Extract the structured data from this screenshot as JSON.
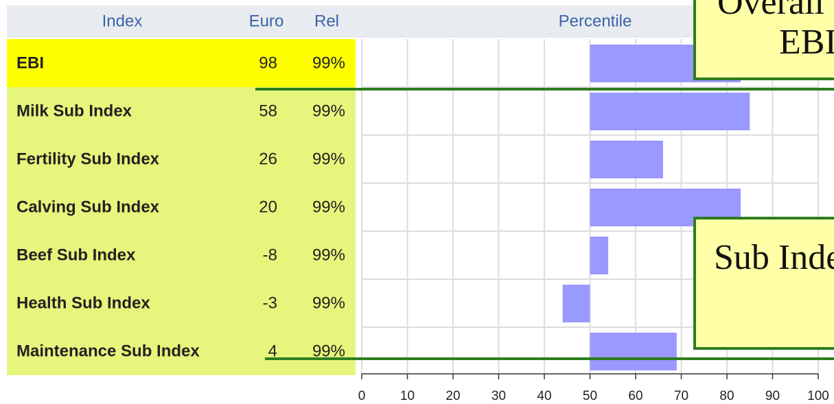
{
  "table": {
    "columns": [
      "Index",
      "Euro",
      "Rel",
      "Percentile"
    ],
    "rows": [
      {
        "name": "EBI",
        "euro": 98,
        "rel": "99%",
        "percentile": 83
      },
      {
        "name": "Milk Sub Index",
        "euro": 58,
        "rel": "99%",
        "percentile": 85
      },
      {
        "name": "Fertility Sub Index",
        "euro": 26,
        "rel": "99%",
        "percentile": 66
      },
      {
        "name": "Calving Sub Index",
        "euro": 20,
        "rel": "99%",
        "percentile": 83
      },
      {
        "name": "Beef Sub Index",
        "euro": -8,
        "rel": "99%",
        "percentile": 54
      },
      {
        "name": "Health Sub Index",
        "euro": -3,
        "rel": "99%",
        "percentile": 44
      },
      {
        "name": "Maintenance Sub Index",
        "euro": 4,
        "rel": "99%",
        "percentile": 69
      }
    ],
    "xlim": [
      0,
      100
    ],
    "xticks": [
      0,
      10,
      20,
      30,
      40,
      50,
      60,
      70,
      80,
      90,
      100
    ],
    "bar_base": 50,
    "bar_color": "#9999ff"
  },
  "callouts": [
    {
      "lines": [
        "Overall",
        "EBI"
      ]
    },
    {
      "lines": [
        "Sub Index"
      ]
    }
  ]
}
